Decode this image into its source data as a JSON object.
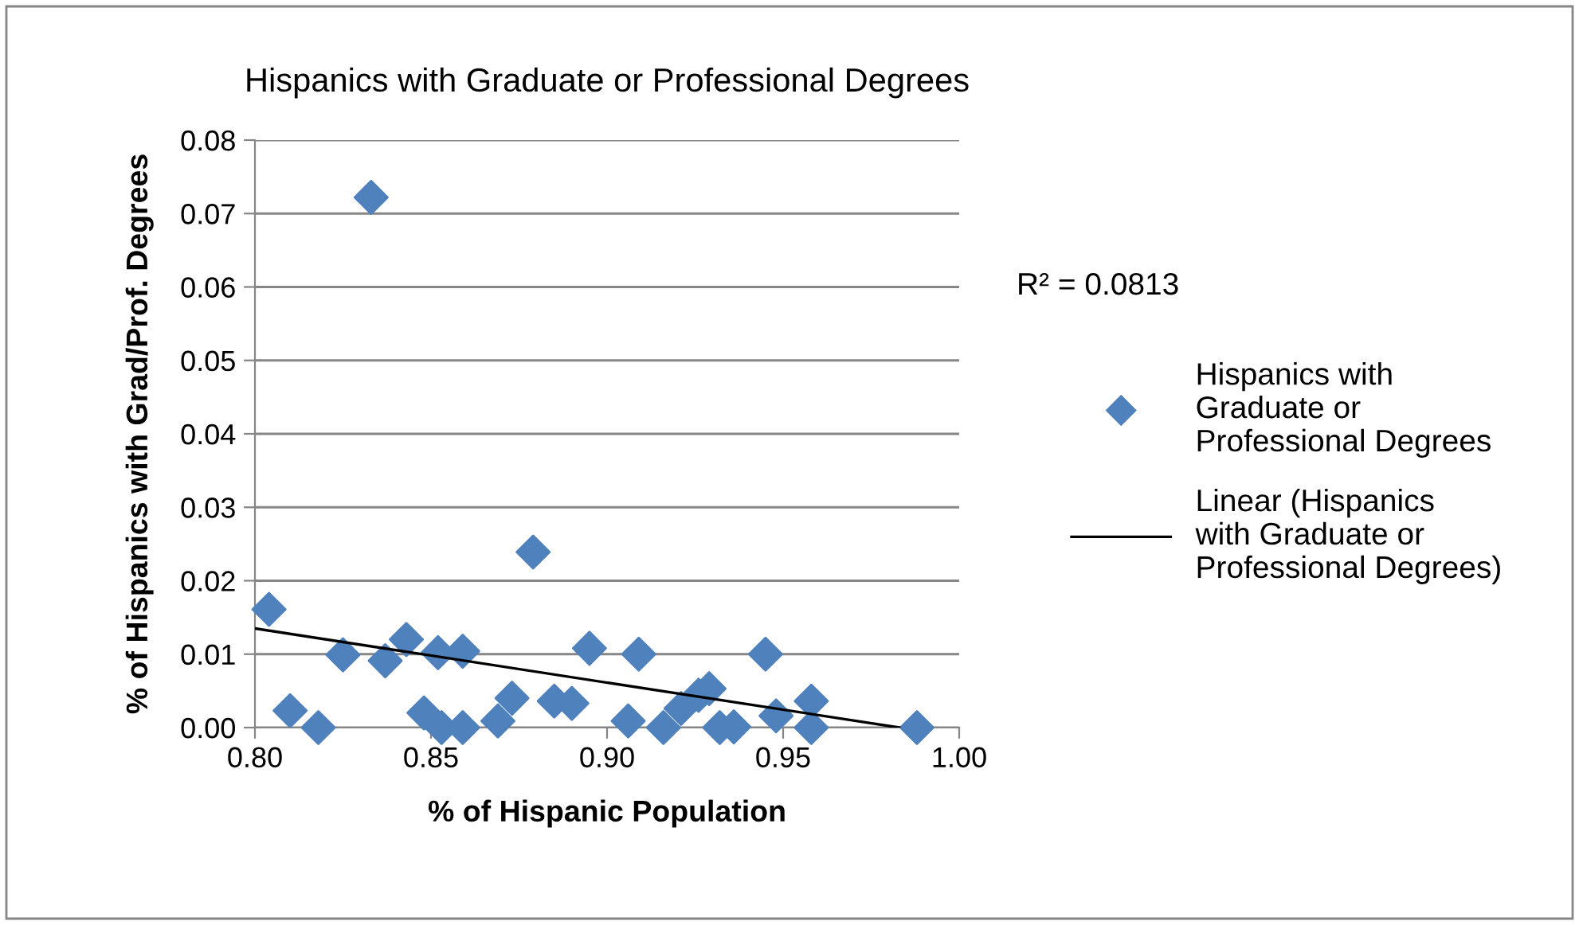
{
  "chart_data": {
    "type": "scatter",
    "title": "Hispanics with Graduate or Professional Degrees",
    "xlabel": "% of Hispanic Population",
    "ylabel": "% of Hispanics with Grad/Prof. Degrees",
    "xlim": [
      0.8,
      1.0
    ],
    "xticks": [
      {
        "value": 0.8,
        "label": "0.80"
      },
      {
        "value": 0.85,
        "label": "0.85"
      },
      {
        "value": 0.9,
        "label": "0.90"
      },
      {
        "value": 0.95,
        "label": "0.95"
      },
      {
        "value": 1.0,
        "label": "1.00"
      }
    ],
    "ylim": [
      0,
      0.08
    ],
    "yticks": [
      {
        "value": 0,
        "label": "0.00"
      },
      {
        "value": 0.01,
        "label": "0.01"
      },
      {
        "value": 0.02,
        "label": "0.02"
      },
      {
        "value": 0.03,
        "label": "0.03"
      },
      {
        "value": 0.04,
        "label": "0.04"
      },
      {
        "value": 0.05,
        "label": "0.05"
      },
      {
        "value": 0.06,
        "label": "0.06"
      },
      {
        "value": 0.07,
        "label": "0.07"
      },
      {
        "value": 0.08,
        "label": "0.08"
      }
    ],
    "grid": "y",
    "legend": "right",
    "annotations": [
      "R² = 0.0813"
    ],
    "series": [
      {
        "name": "Hispanics with Graduate or Professional Degrees",
        "marker": "diamond",
        "color": "#4f81bd",
        "x": [
          0.804,
          0.81,
          0.818,
          0.825,
          0.833,
          0.837,
          0.843,
          0.848,
          0.852,
          0.853,
          0.859,
          0.859,
          0.869,
          0.873,
          0.879,
          0.885,
          0.89,
          0.895,
          0.906,
          0.909,
          0.916,
          0.921,
          0.926,
          0.929,
          0.932,
          0.936,
          0.945,
          0.948,
          0.958,
          0.958,
          0.988
        ],
        "values": [
          0.0161,
          0.0023,
          0.0,
          0.0099,
          0.0722,
          0.0091,
          0.012,
          0.002,
          0.0102,
          0.0,
          0.0104,
          0.0,
          0.0009,
          0.004,
          0.0239,
          0.0036,
          0.0033,
          0.0108,
          0.0009,
          0.01,
          0.0,
          0.0026,
          0.0044,
          0.0053,
          0.0,
          0.0001,
          0.01,
          0.0016,
          0.0036,
          0.0,
          0.0
        ]
      },
      {
        "name": "Linear (Hispanics with Graduate or Professional Degrees)",
        "type": "line",
        "color": "#000000",
        "line_style": "solid",
        "marker": "none",
        "x": [
          0.8,
          0.983
        ],
        "values": [
          0.0135,
          0.0
        ]
      }
    ]
  }
}
